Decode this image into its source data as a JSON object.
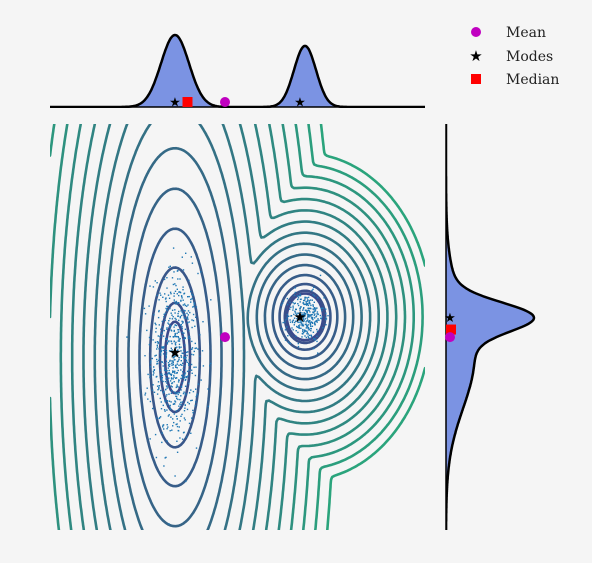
{
  "legend": {
    "mean_label": "Mean",
    "modes_label": "Modes",
    "median_label": "Median"
  },
  "colors": {
    "background": "#f5f5f5",
    "marginal_fill": "#7b93e3",
    "mean": "#c000c0",
    "modes": "#000000",
    "median": "#ff0000",
    "scatter": "#1f77b4",
    "contour_inner": "#3b4a8c",
    "contour_outer": "#2aa47c"
  },
  "chart_data": {
    "type": "scatter",
    "description_components": [
      {
        "name": "",
        "center": [
          -1.0,
          -0.6
        ],
        "sd": [
          0.28,
          1.0
        ],
        "weight": 0.6
      },
      {
        "name": "",
        "center": [
          1.6,
          0.2
        ],
        "sd": [
          0.22,
          0.28
        ],
        "weight": 0.4
      }
    ],
    "xlim": [
      -3.5,
      4.0
    ],
    "ylim": [
      -4.0,
      4.0
    ],
    "mean": [
      0.0,
      -0.2
    ],
    "modes": [
      [
        -1.0,
        -0.5
      ],
      [
        1.5,
        0.2
      ]
    ],
    "median": [
      -0.75,
      0.0
    ],
    "y_median": -0.05,
    "legend_position": "top-right",
    "grid": false
  }
}
